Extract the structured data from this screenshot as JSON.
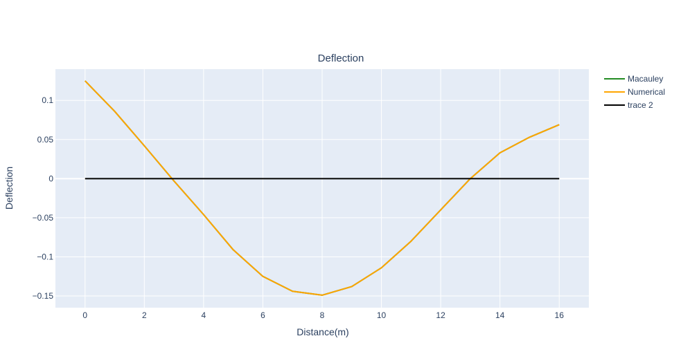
{
  "chart_data": {
    "type": "line",
    "title": "Deflection",
    "xlabel": "Distance(m)",
    "ylabel": "Deflection",
    "xlim": [
      -1,
      17
    ],
    "ylim": [
      -0.165,
      0.14
    ],
    "xticks": [
      0,
      2,
      4,
      6,
      8,
      10,
      12,
      14,
      16
    ],
    "xtick_labels": [
      "0",
      "2",
      "4",
      "6",
      "8",
      "10",
      "12",
      "14",
      "16"
    ],
    "yticks": [
      0.1,
      0.05,
      0,
      -0.05,
      -0.1,
      -0.15
    ],
    "ytick_labels": [
      "0.1",
      "0.05",
      "0",
      "−0.05",
      "−0.1",
      "−0.15"
    ],
    "grid": true,
    "legend_position": "top-right",
    "series": [
      {
        "name": "Macauley",
        "color": "#228B22",
        "x": [
          0,
          1,
          2,
          3,
          4,
          5,
          6,
          7,
          8,
          9,
          10,
          11,
          12,
          13,
          14,
          15,
          16
        ],
        "y": [
          0.125,
          0.086,
          0.042,
          -0.003,
          -0.046,
          -0.091,
          -0.125,
          -0.144,
          -0.149,
          -0.138,
          -0.114,
          -0.08,
          -0.04,
          0.0,
          0.033,
          0.053,
          0.069
        ]
      },
      {
        "name": "Numerical",
        "color": "#FFA500",
        "x": [
          0,
          1,
          2,
          3,
          4,
          5,
          6,
          7,
          8,
          9,
          10,
          11,
          12,
          13,
          14,
          15,
          16
        ],
        "y": [
          0.125,
          0.086,
          0.042,
          -0.003,
          -0.046,
          -0.091,
          -0.125,
          -0.144,
          -0.149,
          -0.138,
          -0.114,
          -0.08,
          -0.04,
          0.0,
          0.033,
          0.053,
          0.069
        ]
      },
      {
        "name": "trace 2",
        "color": "#000000",
        "x": [
          0,
          16
        ],
        "y": [
          0,
          0
        ]
      }
    ]
  }
}
